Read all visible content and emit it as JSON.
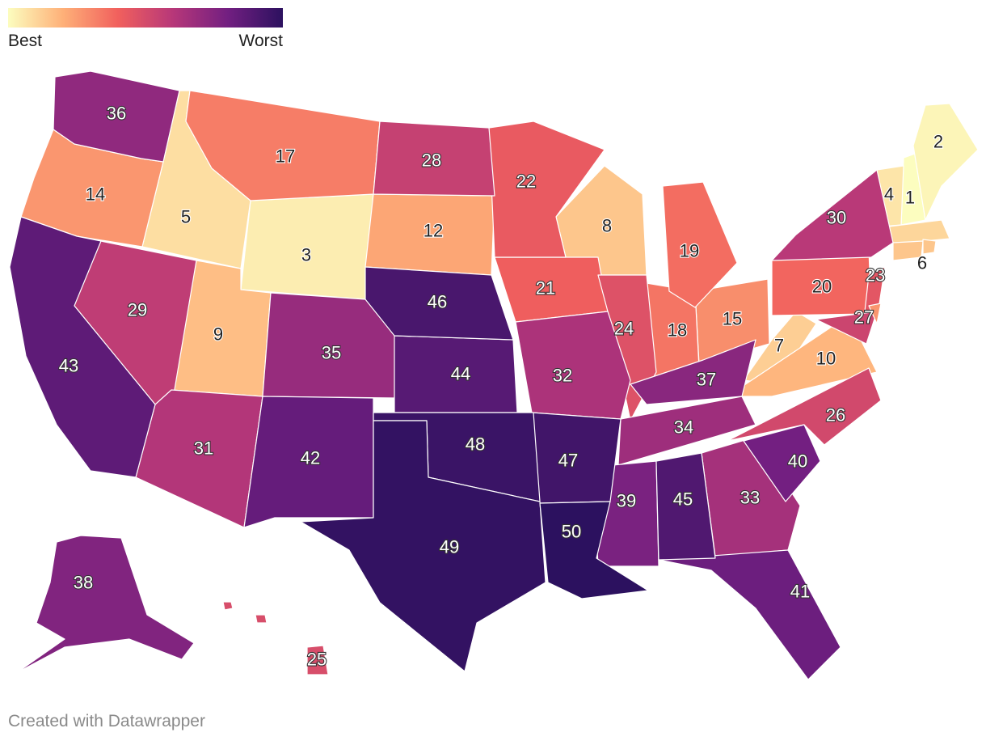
{
  "legend": {
    "best_label": "Best",
    "worst_label": "Worst",
    "colors": [
      "#fcfdbf",
      "#feb078",
      "#f1605d",
      "#b73779",
      "#721f81",
      "#2c115f"
    ]
  },
  "credit": "Created with Datawrapper",
  "chart_data": {
    "type": "choropleth",
    "region": "United States",
    "scale": {
      "min_rank": 1,
      "max_rank": 50,
      "min_label": "Best",
      "max_label": "Worst"
    },
    "ranks": [
      {
        "state": "New Hampshire",
        "abbr": "NH",
        "rank": 1
      },
      {
        "state": "Maine",
        "abbr": "ME",
        "rank": 2
      },
      {
        "state": "Wyoming",
        "abbr": "WY",
        "rank": 3
      },
      {
        "state": "Vermont",
        "abbr": "VT",
        "rank": 4
      },
      {
        "state": "Idaho",
        "abbr": "ID",
        "rank": 5
      },
      {
        "state": "Massachusetts",
        "abbr": "MA",
        "rank": 6
      },
      {
        "state": "West Virginia",
        "abbr": "WV",
        "rank": 7
      },
      {
        "state": "Wisconsin",
        "abbr": "WI",
        "rank": 8
      },
      {
        "state": "Utah",
        "abbr": "UT",
        "rank": 9
      },
      {
        "state": "Virginia",
        "abbr": "VA",
        "rank": 10
      },
      {
        "state": "South Dakota",
        "abbr": "SD",
        "rank": 12
      },
      {
        "state": "Oregon",
        "abbr": "OR",
        "rank": 14
      },
      {
        "state": "Ohio",
        "abbr": "OH",
        "rank": 15
      },
      {
        "state": "Montana",
        "abbr": "MT",
        "rank": 17
      },
      {
        "state": "Indiana",
        "abbr": "IN",
        "rank": 18
      },
      {
        "state": "Michigan",
        "abbr": "MI",
        "rank": 19
      },
      {
        "state": "Pennsylvania",
        "abbr": "PA",
        "rank": 20
      },
      {
        "state": "Iowa",
        "abbr": "IA",
        "rank": 21
      },
      {
        "state": "Minnesota",
        "abbr": "MN",
        "rank": 22
      },
      {
        "state": "New Jersey",
        "abbr": "NJ",
        "rank": 23
      },
      {
        "state": "Illinois",
        "abbr": "IL",
        "rank": 24
      },
      {
        "state": "Hawaii",
        "abbr": "HI",
        "rank": 25
      },
      {
        "state": "North Carolina",
        "abbr": "NC",
        "rank": 26
      },
      {
        "state": "Maryland",
        "abbr": "MD",
        "rank": 27
      },
      {
        "state": "North Dakota",
        "abbr": "ND",
        "rank": 28
      },
      {
        "state": "Nevada",
        "abbr": "NV",
        "rank": 29
      },
      {
        "state": "New York",
        "abbr": "NY",
        "rank": 30
      },
      {
        "state": "Arizona",
        "abbr": "AZ",
        "rank": 31
      },
      {
        "state": "Missouri",
        "abbr": "MO",
        "rank": 32
      },
      {
        "state": "Georgia",
        "abbr": "GA",
        "rank": 33
      },
      {
        "state": "Tennessee",
        "abbr": "TN",
        "rank": 34
      },
      {
        "state": "Colorado",
        "abbr": "CO",
        "rank": 35
      },
      {
        "state": "Washington",
        "abbr": "WA",
        "rank": 36
      },
      {
        "state": "Kentucky",
        "abbr": "KY",
        "rank": 37
      },
      {
        "state": "Alaska",
        "abbr": "AK",
        "rank": 38
      },
      {
        "state": "Mississippi",
        "abbr": "MS",
        "rank": 39
      },
      {
        "state": "South Carolina",
        "abbr": "SC",
        "rank": 40
      },
      {
        "state": "Florida",
        "abbr": "FL",
        "rank": 41
      },
      {
        "state": "New Mexico",
        "abbr": "NM",
        "rank": 42
      },
      {
        "state": "California",
        "abbr": "CA",
        "rank": 43
      },
      {
        "state": "Kansas",
        "abbr": "KS",
        "rank": 44
      },
      {
        "state": "Alabama",
        "abbr": "AL",
        "rank": 45
      },
      {
        "state": "Nebraska",
        "abbr": "NE",
        "rank": 46
      },
      {
        "state": "Arkansas",
        "abbr": "AR",
        "rank": 47
      },
      {
        "state": "Oklahoma",
        "abbr": "OK",
        "rank": 48
      },
      {
        "state": "Texas",
        "abbr": "TX",
        "rank": 49
      },
      {
        "state": "Louisiana",
        "abbr": "LA",
        "rank": 50
      },
      {
        "state": "Connecticut",
        "abbr": "CT",
        "rank": null
      },
      {
        "state": "Rhode Island",
        "abbr": "RI",
        "rank": null
      },
      {
        "state": "Delaware",
        "abbr": "DE",
        "rank": null
      }
    ]
  }
}
